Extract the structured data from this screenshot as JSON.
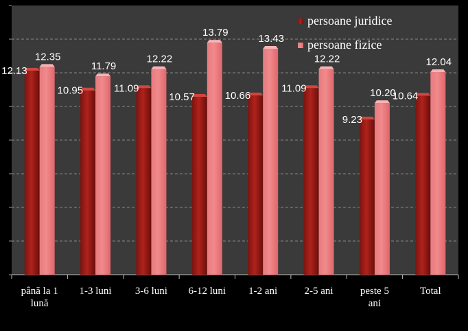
{
  "chart_data": {
    "type": "bar",
    "title": "",
    "xlabel": "",
    "ylabel": "",
    "categories": [
      "până la 1 lună",
      "1-3 luni",
      "3-6 luni",
      "6-12 luni",
      "1-2 ani",
      "2-5 ani",
      "peste 5 ani",
      "Total"
    ],
    "category_lines": [
      [
        "până la 1",
        "lună"
      ],
      [
        "1-3 luni"
      ],
      [
        "3-6 luni"
      ],
      [
        "6-12 luni"
      ],
      [
        "1-2 ani"
      ],
      [
        "2-5 ani"
      ],
      [
        "peste 5",
        "ani"
      ],
      [
        "Total"
      ]
    ],
    "series": [
      {
        "name": "persoane juridice",
        "color": "#b0221c",
        "values": [
          12.13,
          10.95,
          11.09,
          10.57,
          10.66,
          11.09,
          9.23,
          10.64
        ],
        "labels": [
          "12.13",
          "10.95",
          "11.09",
          "10.57",
          "10.66",
          "11.09",
          "9.23",
          "10.64"
        ]
      },
      {
        "name": "persoane fizice",
        "color": "#f08a8c",
        "values": [
          12.35,
          11.79,
          12.22,
          13.79,
          13.43,
          12.22,
          10.2,
          12.04
        ],
        "labels": [
          "12.35",
          "11.79",
          "12.22",
          "13.79",
          "13.43",
          "12.22",
          "10.20",
          "12.04"
        ]
      }
    ],
    "ylim": [
      0,
      16
    ],
    "grid": true,
    "legend_position": "top-right",
    "plot_background": "#3a3a3a",
    "grid_color": "#888888"
  }
}
